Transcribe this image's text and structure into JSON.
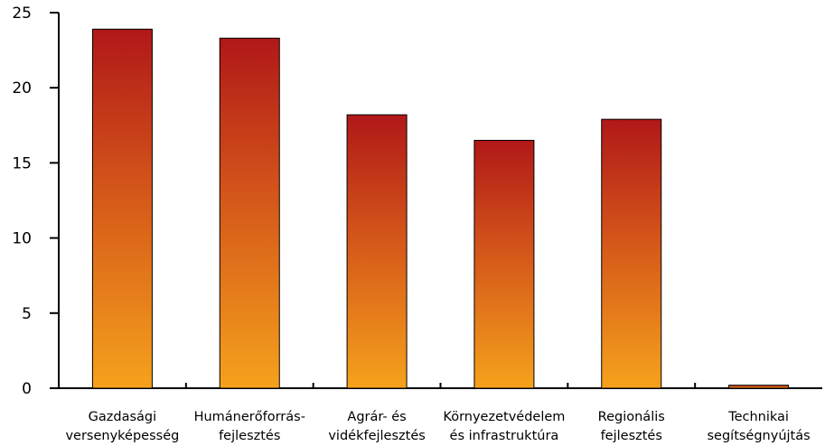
{
  "chart_data": {
    "type": "bar",
    "categories": [
      [
        "Gazdasági",
        "versenyképesség"
      ],
      [
        "Humánerőforrás-",
        "fejlesztés"
      ],
      [
        "Agrár- és",
        "vidékfejlesztés"
      ],
      [
        "Környezetvédelem",
        "és infrastruktúra"
      ],
      [
        "Regionális",
        "fejlesztés"
      ],
      [
        "Technikai",
        "segítségnyújtás"
      ]
    ],
    "values": [
      23.9,
      23.3,
      18.2,
      16.5,
      17.9,
      0.2
    ],
    "ylim": [
      0,
      25
    ],
    "yticks": [
      "0",
      "5",
      "10",
      "15",
      "20",
      "25"
    ],
    "grid": false,
    "title": "",
    "xlabel": "",
    "ylabel": "",
    "colors": {
      "bar_top": "#b01818",
      "bar_mid": "#d4561a",
      "bar_bottom": "#f5a21c",
      "bar_stroke": "#000000",
      "axis": "#000000"
    }
  }
}
